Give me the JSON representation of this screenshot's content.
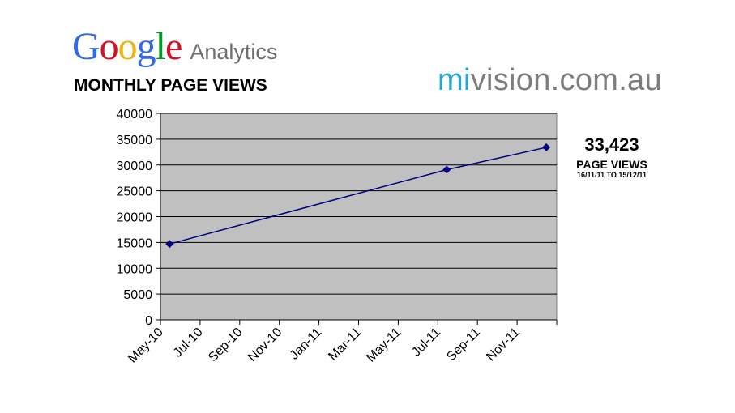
{
  "logo": {
    "google_text": "Google",
    "google_colors": [
      "#3369e8",
      "#d50f25",
      "#eeb211",
      "#3369e8",
      "#009925",
      "#d50f25"
    ],
    "analytics_text": "Analytics"
  },
  "brand": {
    "accent": "mi",
    "rest": "vision.com.au",
    "accent_color": "#27a6d1",
    "rest_color": "#7d7d7d"
  },
  "callout": {
    "value": "33,423",
    "label": "PAGE VIEWS",
    "range": "16/11/11 TO 15/12/11"
  },
  "chart_data": {
    "type": "line",
    "title": "MONTHLY PAGE VIEWS",
    "xlabel": "",
    "ylabel": "",
    "categories": [
      "May-10",
      "Jul-10",
      "Sep-10",
      "Nov-10",
      "Jan-11",
      "Mar-11",
      "May-11",
      "Jul-11",
      "Sep-11",
      "Nov-11"
    ],
    "x_range": [
      "2010-05-01",
      "2011-12-31"
    ],
    "ylim": [
      0,
      40000
    ],
    "yticks": [
      0,
      5000,
      10000,
      15000,
      20000,
      25000,
      30000,
      35000,
      40000
    ],
    "grid": true,
    "plot_background": "#c0c0c0",
    "line_color": "#000080",
    "series": [
      {
        "points": [
          {
            "date": "2010-05-15",
            "value": 14700
          },
          {
            "date": "2011-07-15",
            "value": 29100
          },
          {
            "date": "2011-12-15",
            "value": 33423
          }
        ]
      }
    ]
  }
}
